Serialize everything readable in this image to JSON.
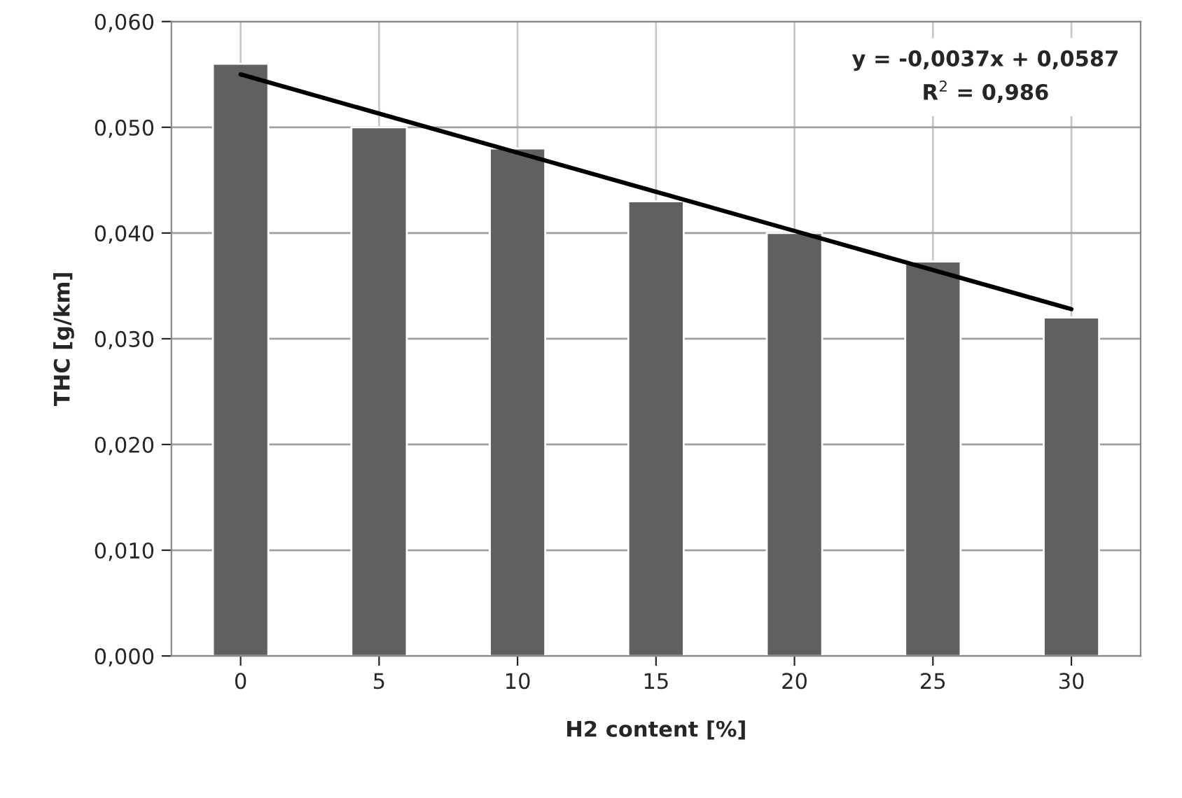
{
  "chart_data": {
    "type": "bar",
    "xlabel": "H2 content [%]",
    "ylabel": "THC [g/km]",
    "categories": [
      "0",
      "5",
      "10",
      "15",
      "20",
      "25",
      "30"
    ],
    "series": [
      {
        "color": "#606060",
        "values": [
          0.056,
          0.05,
          0.048,
          0.043,
          0.04,
          0.0373,
          0.032
        ]
      },
      {
        "type": "line",
        "color": "#000000",
        "values": [
          0.055,
          0.0513,
          0.0476,
          0.0439,
          0.0402,
          0.0365,
          0.0328
        ]
      }
    ],
    "ylim": [
      0,
      0.06
    ],
    "yticks": [
      {
        "value": 0,
        "label": "0,000"
      },
      {
        "value": 0.01,
        "label": "0,010"
      },
      {
        "value": 0.02,
        "label": "0,020"
      },
      {
        "value": 0.03,
        "label": "0,030"
      },
      {
        "value": 0.04,
        "label": "0,040"
      },
      {
        "value": 0.05,
        "label": "0,050"
      },
      {
        "value": 0.06,
        "label": "0,060"
      }
    ],
    "grid": true,
    "annotations": [
      "y = -0,0037x + 0,0587",
      "R$^{2}$ = 0,986"
    ]
  }
}
